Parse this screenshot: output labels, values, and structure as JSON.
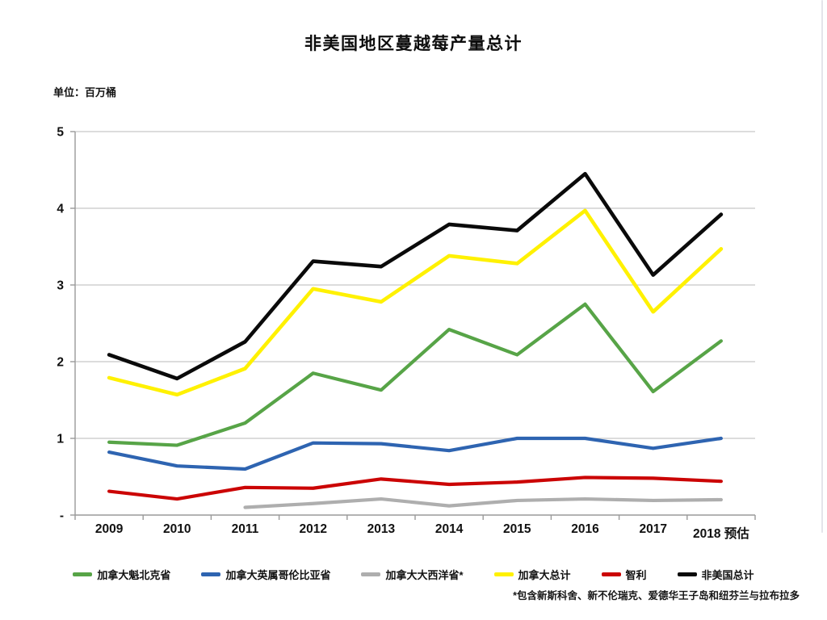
{
  "title": "非美国地区蔓越莓产量总计",
  "unit_label": "单位：百万桶",
  "footnote": "*包含新斯科舍、新不伦瑞克、爱德华王子岛和纽芬兰与拉布拉多",
  "colors": {
    "gridline": "#c8c8c8",
    "axis": "#9a9a9a",
    "tick": "#9a9a9a",
    "label_text": "#111111"
  },
  "chart_data": {
    "type": "line",
    "title": "非美国地区蔓越莓产量总计",
    "ylabel": "单位：百万桶",
    "ylim": [
      0,
      5
    ],
    "grid": true,
    "legend_position": "bottom",
    "x_labels": [
      "2009",
      "2010",
      "2011",
      "2012",
      "2013",
      "2014",
      "2015",
      "2016",
      "2017",
      "2018 预估"
    ],
    "y_tick_labels": [
      "-",
      "1",
      "2",
      "3",
      "4",
      "5"
    ],
    "series": [
      {
        "name": "加拿大魁北克省",
        "color": "#57a447",
        "line_width": 4.2,
        "values": [
          0.95,
          0.91,
          1.2,
          1.85,
          1.63,
          2.42,
          2.09,
          2.75,
          1.61,
          2.27
        ]
      },
      {
        "name": "加拿大英属哥伦比亚省",
        "color": "#2e64b1",
        "line_width": 4.2,
        "values": [
          0.82,
          0.64,
          0.6,
          0.94,
          0.93,
          0.84,
          1.0,
          1.0,
          0.87,
          1.0
        ]
      },
      {
        "name": "加拿大大西洋省*",
        "color": "#aeaeae",
        "line_width": 4.2,
        "values": [
          null,
          null,
          0.1,
          0.15,
          0.21,
          0.12,
          0.19,
          0.21,
          0.19,
          0.2
        ]
      },
      {
        "name": "加拿大总计",
        "color": "#fff100",
        "line_width": 4.6,
        "values": [
          1.79,
          1.57,
          1.91,
          2.95,
          2.78,
          3.38,
          3.28,
          3.97,
          2.65,
          3.47
        ]
      },
      {
        "name": "智利",
        "color": "#cb0404",
        "line_width": 4.2,
        "values": [
          0.31,
          0.21,
          0.36,
          0.35,
          0.47,
          0.4,
          0.43,
          0.49,
          0.48,
          0.44
        ]
      },
      {
        "name": "非美国总计",
        "color": "#0a0a0a",
        "line_width": 4.6,
        "values": [
          2.09,
          1.78,
          2.26,
          3.31,
          3.24,
          3.79,
          3.71,
          4.45,
          3.13,
          3.92
        ]
      }
    ]
  }
}
